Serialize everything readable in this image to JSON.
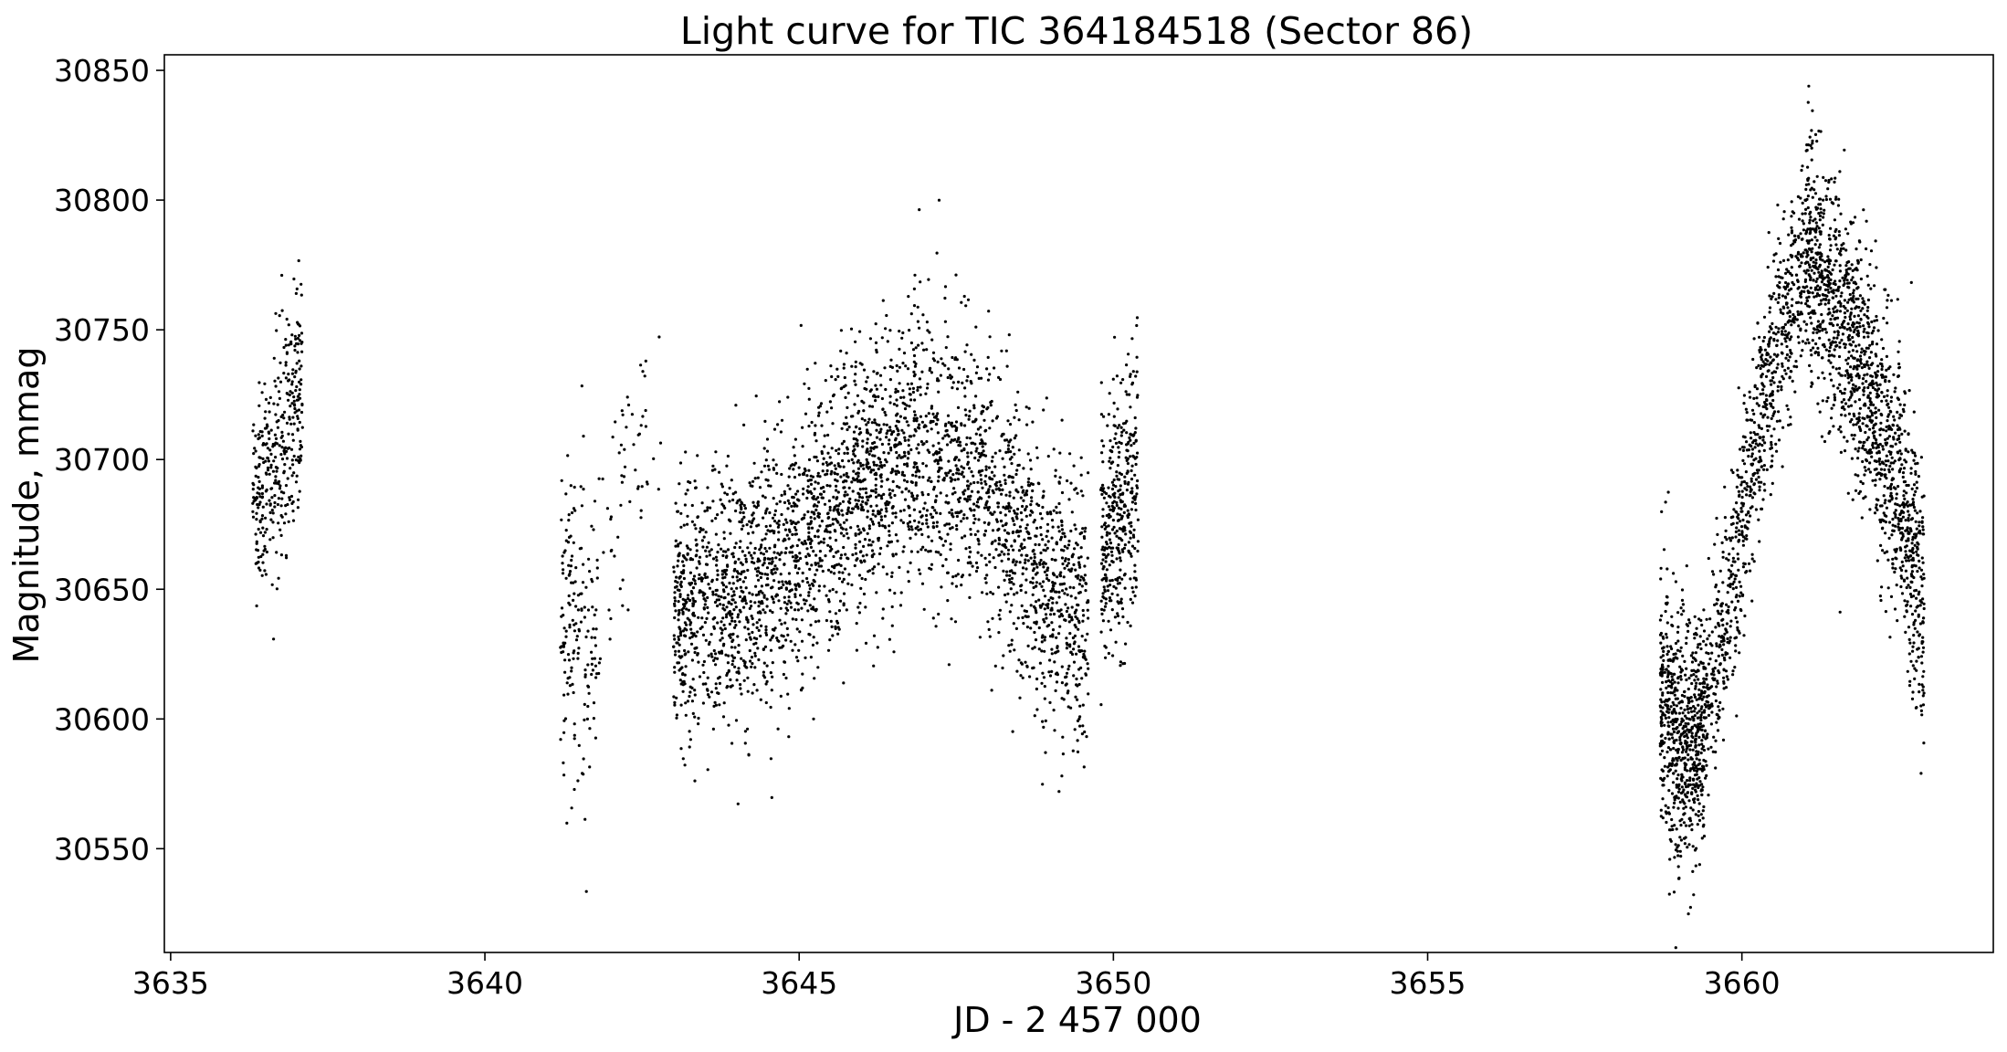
{
  "chart_data": {
    "type": "scatter",
    "title": "Light curve for TIC 364184518 (Sector 86)",
    "xlabel": "JD - 2 457 000",
    "ylabel": "Magnitude, mmag",
    "xlim": [
      3634.9,
      3664.0
    ],
    "ylim": [
      30510,
      30856
    ],
    "xticks": [
      3635,
      3640,
      3645,
      3650,
      3655,
      3660
    ],
    "yticks": [
      30550,
      30600,
      30650,
      30700,
      30750,
      30800,
      30850
    ],
    "xtick_labels": [
      "3635",
      "3640",
      "3645",
      "3650",
      "3655",
      "3660"
    ],
    "ytick_labels": [
      "30550",
      "30600",
      "30650",
      "30700",
      "30750",
      "30800",
      "30850"
    ],
    "grid": false,
    "marker_color": "#000000",
    "series": [
      {
        "segments": [
          {
            "x_range": [
              3636.3,
              3637.1
            ],
            "trend": [
              [
                3636.3,
                30680
              ],
              [
                3636.7,
                30700
              ],
              [
                3637.1,
                30725
              ]
            ],
            "scatter": 22,
            "points": 360
          },
          {
            "x_range": [
              3641.2,
              3641.8
            ],
            "trend": [
              [
                3641.2,
                30640
              ],
              [
                3641.5,
                30635
              ],
              [
                3641.8,
                30630
              ]
            ],
            "scatter": 30,
            "points": 170
          },
          {
            "x_range": [
              3641.8,
              3642.8
            ],
            "trend": [
              [
                3641.8,
                30670
              ],
              [
                3642.3,
                30695
              ],
              [
                3642.8,
                30710
              ]
            ],
            "scatter": 28,
            "points": 60
          },
          {
            "x_range": [
              3643.0,
              3649.6
            ],
            "trend": [
              [
                3643.0,
                30640
              ],
              [
                3644.0,
                30648
              ],
              [
                3645.0,
                30665
              ],
              [
                3646.0,
                30690
              ],
              [
                3647.0,
                30705
              ],
              [
                3648.0,
                30690
              ],
              [
                3649.0,
                30650
              ],
              [
                3649.6,
                30640
              ]
            ],
            "scatter": 26,
            "points": 3200
          },
          {
            "x_range": [
              3649.8,
              3650.4
            ],
            "trend": [
              [
                3649.8,
                30670
              ],
              [
                3650.1,
                30680
              ],
              [
                3650.4,
                30690
              ]
            ],
            "scatter": 25,
            "points": 380
          },
          {
            "x_range": [
              3658.7,
              3659.4
            ],
            "trend": [
              [
                3658.7,
                30610
              ],
              [
                3659.0,
                30590
              ],
              [
                3659.4,
                30595
              ]
            ],
            "scatter": 24,
            "points": 700
          },
          {
            "x_range": [
              3659.4,
              3661.0
            ],
            "trend": [
              [
                3659.4,
                30600
              ],
              [
                3660.0,
                30670
              ],
              [
                3660.5,
                30740
              ],
              [
                3661.0,
                30780
              ]
            ],
            "scatter": 20,
            "points": 800
          },
          {
            "x_range": [
              3661.0,
              3662.9
            ],
            "trend": [
              [
                3661.0,
                30780
              ],
              [
                3661.5,
                30760
              ],
              [
                3662.0,
                30730
              ],
              [
                3662.5,
                30690
              ],
              [
                3662.9,
                30640
              ]
            ],
            "scatter": 24,
            "points": 1400
          }
        ]
      }
    ]
  }
}
